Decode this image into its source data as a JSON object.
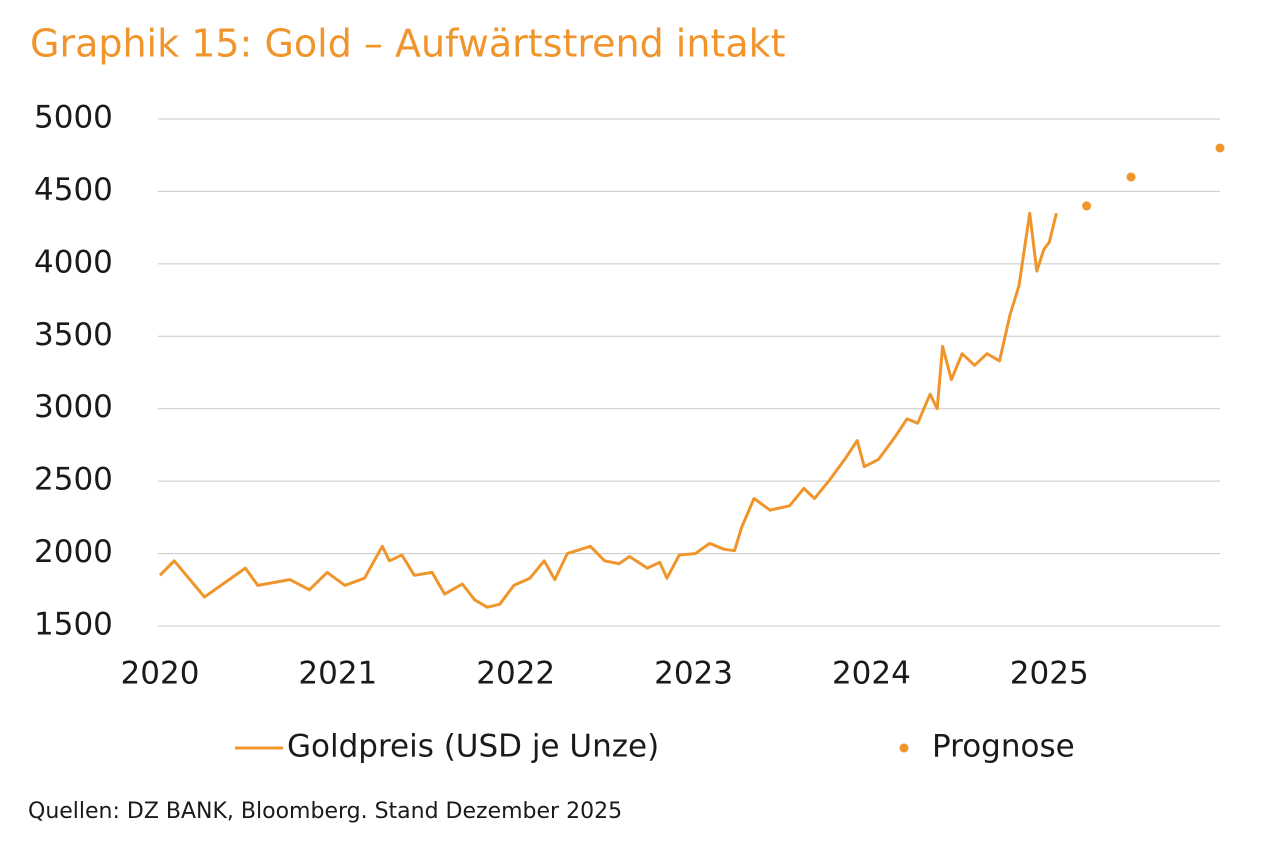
{
  "chart_data": {
    "type": "line",
    "title": "Graphik 15: Gold – Aufwärtstrend intakt",
    "source": "Quellen: DZ BANK, Bloomberg. Stand Dezember 2025",
    "xlim": [
      2020,
      2025.96
    ],
    "xticks": [
      2020,
      2021,
      2022,
      2023,
      2024,
      2025
    ],
    "ylim": [
      1500,
      5000
    ],
    "yticks": [
      1500,
      2000,
      2500,
      3000,
      3500,
      4000,
      4500,
      5000
    ],
    "grid": true,
    "series": [
      {
        "name": "Goldpreis (USD je Unze)",
        "color": "#f0952b",
        "style": "line",
        "x": [
          2020.0,
          2020.08,
          2020.25,
          2020.48,
          2020.55,
          2020.73,
          2020.84,
          2020.94,
          2021.04,
          2021.15,
          2021.25,
          2021.29,
          2021.36,
          2021.43,
          2021.53,
          2021.6,
          2021.7,
          2021.77,
          2021.84,
          2021.91,
          2021.99,
          2022.08,
          2022.16,
          2022.22,
          2022.29,
          2022.42,
          2022.5,
          2022.58,
          2022.64,
          2022.74,
          2022.81,
          2022.85,
          2022.92,
          2023.01,
          2023.09,
          2023.17,
          2023.23,
          2023.27,
          2023.34,
          2023.43,
          2023.54,
          2023.62,
          2023.68,
          2023.76,
          2023.85,
          2023.92,
          2023.96,
          2024.04,
          2024.13,
          2024.2,
          2024.26,
          2024.33,
          2024.37,
          2024.4,
          2024.45,
          2024.51,
          2024.58,
          2024.65,
          2024.72,
          2024.78,
          2024.83,
          2024.89,
          2024.93,
          2024.97,
          2025.0,
          2025.04
        ],
        "values": [
          1850,
          1950,
          1700,
          1900,
          1780,
          1820,
          1750,
          1870,
          1780,
          1830,
          2050,
          1950,
          1990,
          1850,
          1870,
          1720,
          1790,
          1680,
          1630,
          1650,
          1780,
          1830,
          1950,
          1820,
          2000,
          2050,
          1950,
          1930,
          1980,
          1900,
          1940,
          1830,
          1990,
          2000,
          2070,
          2030,
          2020,
          2180,
          2380,
          2300,
          2330,
          2450,
          2380,
          2500,
          2650,
          2780,
          2600,
          2650,
          2800,
          2930,
          2900,
          3100,
          3000,
          3430,
          3200,
          3380,
          3300,
          3380,
          3330,
          3650,
          3850,
          4350,
          3950,
          4100,
          4150,
          4350
        ]
      },
      {
        "name": "Prognose",
        "color": "#f0952b",
        "style": "dot",
        "x": [
          2025.21,
          2025.46,
          2025.96
        ],
        "values": [
          4400,
          4600,
          4800
        ]
      }
    ]
  }
}
